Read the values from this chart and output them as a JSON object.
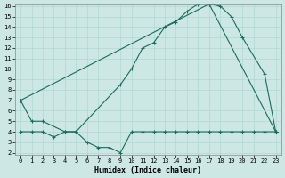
{
  "xlabel": "Humidex (Indice chaleur)",
  "background_color": "#cde8e4",
  "line_color": "#1a6b5a",
  "grid_color": "#b0d8d0",
  "ylim": [
    2,
    16
  ],
  "xlim": [
    -0.5,
    23.5
  ],
  "yticks": [
    2,
    3,
    4,
    5,
    6,
    7,
    8,
    9,
    10,
    11,
    12,
    13,
    14,
    15,
    16
  ],
  "xticks": [
    0,
    1,
    2,
    3,
    4,
    5,
    6,
    7,
    8,
    9,
    10,
    11,
    12,
    13,
    14,
    15,
    16,
    17,
    18,
    19,
    20,
    21,
    22,
    23
  ],
  "series1_x": [
    0,
    1,
    2,
    4,
    5,
    9,
    10,
    11,
    12,
    13,
    14,
    15,
    16,
    17,
    18,
    19,
    20,
    22,
    23
  ],
  "series1_y": [
    7,
    5,
    5,
    4,
    4,
    8.5,
    10,
    12,
    12.5,
    14,
    14.5,
    15.5,
    16.2,
    16.2,
    16,
    15,
    13,
    9.5,
    4
  ],
  "series2_x": [
    0,
    17,
    23
  ],
  "series2_y": [
    7,
    16.2,
    4
  ],
  "series3_x": [
    0,
    1,
    2,
    3,
    4,
    5,
    6,
    7,
    8,
    9,
    10,
    11,
    12,
    13,
    14,
    15,
    16,
    17,
    18,
    19,
    20,
    21,
    22,
    23
  ],
  "series3_y": [
    4,
    4,
    4,
    3.5,
    4,
    4,
    3,
    2.5,
    2.5,
    2,
    4,
    4,
    4,
    4,
    4,
    4,
    4,
    4,
    4,
    4,
    4,
    4,
    4,
    4
  ],
  "tick_fontsize": 5,
  "xlabel_fontsize": 6,
  "linewidth": 0.8,
  "markersize": 3
}
